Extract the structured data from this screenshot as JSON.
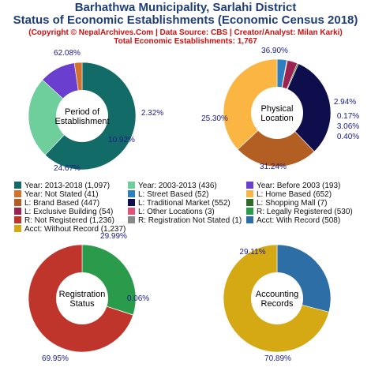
{
  "header": {
    "title_line1": "Barhathwa Municipality, Sarlahi District",
    "title_line2": "Status of Economic Establishments (Economic Census 2018)",
    "credit": "(Copyright © NepalArchives.Com | Data Source: CBS | Creator/Analyst: Milan Karki)",
    "total": "Total Economic Establishments: 1,767"
  },
  "chart_data": [
    {
      "type": "pie",
      "center_label": [
        "Period of",
        "Establishment"
      ],
      "slices": [
        {
          "label": "Year: 2013-2018",
          "value": 1097,
          "pct": "62.08%",
          "color": "#126b66"
        },
        {
          "label": "Year: 2003-2013",
          "value": 436,
          "pct": "24.67%",
          "color": "#6fcf9c"
        },
        {
          "label": "Year: Before 2003",
          "value": 193,
          "pct": "10.92%",
          "color": "#6a3fd0"
        },
        {
          "label": "Year: Not Stated",
          "value": 41,
          "pct": "2.32%",
          "color": "#d2722e"
        }
      ]
    },
    {
      "type": "pie",
      "center_label": [
        "Physical",
        "Location"
      ],
      "slices": [
        {
          "label": "L: Street Based",
          "value": 52,
          "pct": "2.94%",
          "color": "#2f7fc0"
        },
        {
          "label": "L: Other Locations",
          "value": 3,
          "pct": "0.17%",
          "color": "#e0527a"
        },
        {
          "label": "L: Exclusive Building",
          "value": 54,
          "pct": "3.06%",
          "color": "#9b2352"
        },
        {
          "label": "L: Shopping Mall",
          "value": 7,
          "pct": "0.40%",
          "color": "#2e6b2a"
        },
        {
          "label": "L: Traditional Market",
          "value": 552,
          "pct": "31.24%",
          "color": "#0f0e4d"
        },
        {
          "label": "L: Brand Based",
          "value": 447,
          "pct": "25.30%",
          "color": "#b35f24"
        },
        {
          "label": "L: Home Based",
          "value": 652,
          "pct": "36.90%",
          "color": "#fbb542"
        }
      ]
    },
    {
      "type": "pie",
      "center_label": [
        "Registration",
        "Status"
      ],
      "slices": [
        {
          "label": "R: Legally Registered",
          "value": 530,
          "pct": "29.99%",
          "color": "#2a9a4b"
        },
        {
          "label": "R: Registration Not Stated",
          "value": 1,
          "pct": "0.06%",
          "color": "#888888"
        },
        {
          "label": "R: Not Registered",
          "value": 1236,
          "pct": "69.95%",
          "color": "#c0352b"
        }
      ]
    },
    {
      "type": "pie",
      "center_label": [
        "Accounting",
        "Records"
      ],
      "slices": [
        {
          "label": "Acct: With Record",
          "value": 508,
          "pct": "29.11%",
          "color": "#2e6ea6"
        },
        {
          "label": "Acct: Without Record",
          "value": 1237,
          "pct": "70.89%",
          "color": "#d4a914"
        }
      ]
    }
  ],
  "legend": [
    {
      "text": "Year: 2013-2018 (1,097)",
      "color": "#126b66"
    },
    {
      "text": "Year: 2003-2013 (436)",
      "color": "#6fcf9c"
    },
    {
      "text": "Year: Before 2003 (193)",
      "color": "#6a3fd0"
    },
    {
      "text": "Year: Not Stated (41)",
      "color": "#d2722e"
    },
    {
      "text": "L: Street Based (52)",
      "color": "#2f7fc0"
    },
    {
      "text": "L: Home Based (652)",
      "color": "#fbb542"
    },
    {
      "text": "L: Brand Based (447)",
      "color": "#b35f24"
    },
    {
      "text": "L: Traditional Market (552)",
      "color": "#0f0e4d"
    },
    {
      "text": "L: Shopping Mall (7)",
      "color": "#2e6b2a"
    },
    {
      "text": "L: Exclusive Building (54)",
      "color": "#9b2352"
    },
    {
      "text": "L: Other Locations (3)",
      "color": "#e0527a"
    },
    {
      "text": "R: Legally Registered (530)",
      "color": "#2a9a4b"
    },
    {
      "text": "R: Not Registered (1,236)",
      "color": "#c0352b"
    },
    {
      "text": "R: Registration Not Stated (1)",
      "color": "#888888"
    },
    {
      "text": "Acct: With Record (508)",
      "color": "#2e6ea6"
    },
    {
      "text": "Acct: Without Record (1,237)",
      "color": "#d4a914"
    }
  ]
}
